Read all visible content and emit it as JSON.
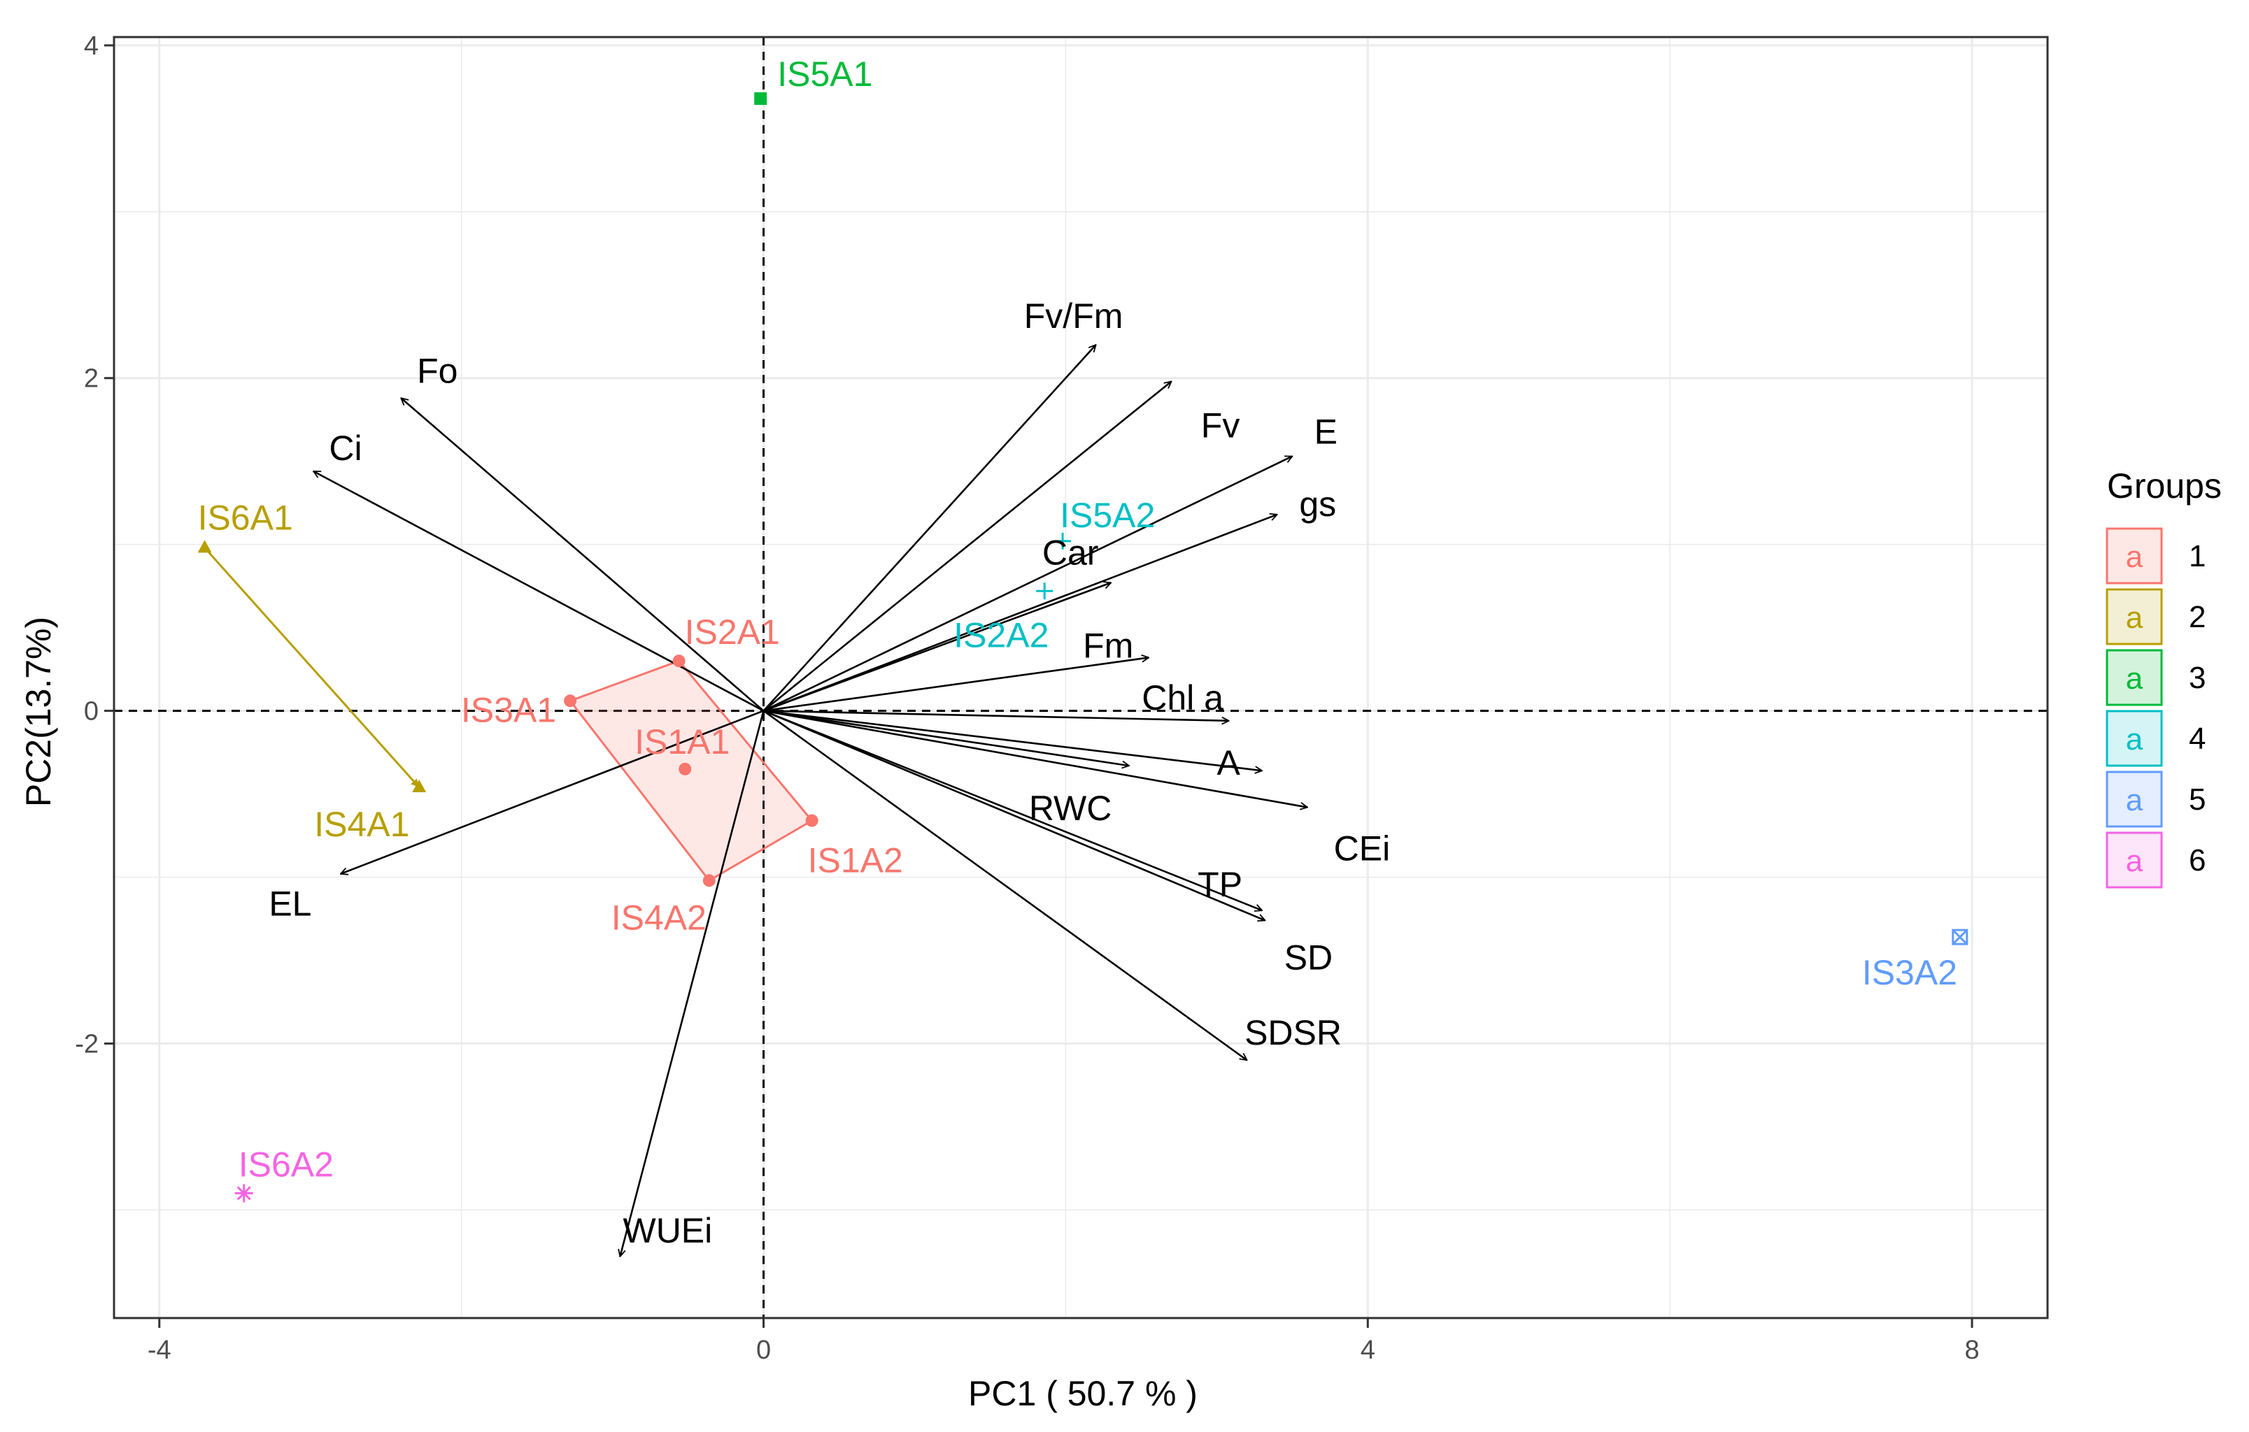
{
  "chart_data": {
    "type": "scatter",
    "title": "",
    "xlabel": "PC1 ( 50.7 % )",
    "ylabel": "PC2(13.7%)",
    "xlim": [
      -4.3,
      8.5
    ],
    "ylim": [
      -3.65,
      4.05
    ],
    "x_ticks": [
      -4,
      0,
      4,
      8
    ],
    "y_ticks": [
      -2,
      0,
      2,
      4
    ],
    "x_tick_labels": [
      "-4",
      "0",
      "4",
      "8"
    ],
    "y_tick_labels": [
      "-2",
      "0",
      "2",
      "4"
    ],
    "grid": true,
    "legend": {
      "title": "Groups",
      "position": "right",
      "entries": [
        {
          "label": "1",
          "glyph": "a",
          "color": "#F8766D"
        },
        {
          "label": "2",
          "glyph": "a",
          "color": "#B79F00"
        },
        {
          "label": "3",
          "glyph": "a",
          "color": "#00BA38"
        },
        {
          "label": "4",
          "glyph": "a",
          "color": "#00BFC4"
        },
        {
          "label": "5",
          "glyph": "a",
          "color": "#619CFF"
        },
        {
          "label": "6",
          "glyph": "a",
          "color": "#F564E3"
        }
      ]
    },
    "hull_group1": [
      [
        -1.28,
        0.06
      ],
      [
        -0.56,
        0.3
      ],
      [
        0.32,
        -0.66
      ],
      [
        -0.36,
        -1.02
      ]
    ],
    "individuals": [
      {
        "label": "IS1A1",
        "group": 1,
        "x": -0.52,
        "y": -0.35,
        "color": "#F8766D"
      },
      {
        "label": "IS2A1",
        "group": 1,
        "x": -0.56,
        "y": 0.3,
        "color": "#F8766D"
      },
      {
        "label": "IS3A1",
        "group": 1,
        "x": -1.28,
        "y": 0.06,
        "color": "#F8766D"
      },
      {
        "label": "IS1A2",
        "group": 1,
        "x": 0.32,
        "y": -0.66,
        "color": "#F8766D"
      },
      {
        "label": "IS4A2",
        "group": 1,
        "x": -0.36,
        "y": -1.02,
        "color": "#F8766D"
      },
      {
        "label": "IS6A1",
        "group": 2,
        "x": -3.7,
        "y": 0.98,
        "color": "#B79F00"
      },
      {
        "label": "IS4A1",
        "group": 2,
        "x": -2.28,
        "y": -0.46,
        "color": "#B79F00"
      },
      {
        "label": "IS5A1",
        "group": 3,
        "x": -0.02,
        "y": 3.68,
        "color": "#00BA38"
      },
      {
        "label": "IS5A2",
        "group": 4,
        "x": 1.98,
        "y": 1.02,
        "color": "#00BFC4"
      },
      {
        "label": "IS2A2",
        "group": 4,
        "x": 1.86,
        "y": 0.72,
        "color": "#00BFC4"
      },
      {
        "label": "IS3A2",
        "group": 5,
        "x": 7.92,
        "y": -1.36,
        "color": "#619CFF"
      },
      {
        "label": "IS6A2",
        "group": 6,
        "x": -3.44,
        "y": -2.9,
        "color": "#F564E3"
      }
    ],
    "variables": [
      {
        "label": "Fv/Fm",
        "x": 2.2,
        "y": 2.2
      },
      {
        "label": "Fv",
        "x": 2.7,
        "y": 1.98
      },
      {
        "label": "E",
        "x": 3.5,
        "y": 1.53
      },
      {
        "label": "gs",
        "x": 3.4,
        "y": 1.18
      },
      {
        "label": "Car",
        "x": 2.3,
        "y": 0.77
      },
      {
        "label": "Fm",
        "x": 2.55,
        "y": 0.32
      },
      {
        "label": "Chl a",
        "x": 3.08,
        "y": -0.06
      },
      {
        "label": "A",
        "x": 3.3,
        "y": -0.36
      },
      {
        "label": "RWC",
        "x": 2.42,
        "y": -0.33
      },
      {
        "label": "CEi",
        "x": 3.6,
        "y": -0.58
      },
      {
        "label": "TP",
        "x": 3.3,
        "y": -1.2
      },
      {
        "label": "SD",
        "x": 3.32,
        "y": -1.26
      },
      {
        "label": "SDSR",
        "x": 3.2,
        "y": -2.1
      },
      {
        "label": "WUEi",
        "x": -0.95,
        "y": -3.28
      },
      {
        "label": "EL",
        "x": -2.8,
        "y": -0.98
      },
      {
        "label": "Ci",
        "x": -2.98,
        "y": 1.44
      },
      {
        "label": "Fo",
        "x": -2.4,
        "y": 1.88
      }
    ]
  }
}
